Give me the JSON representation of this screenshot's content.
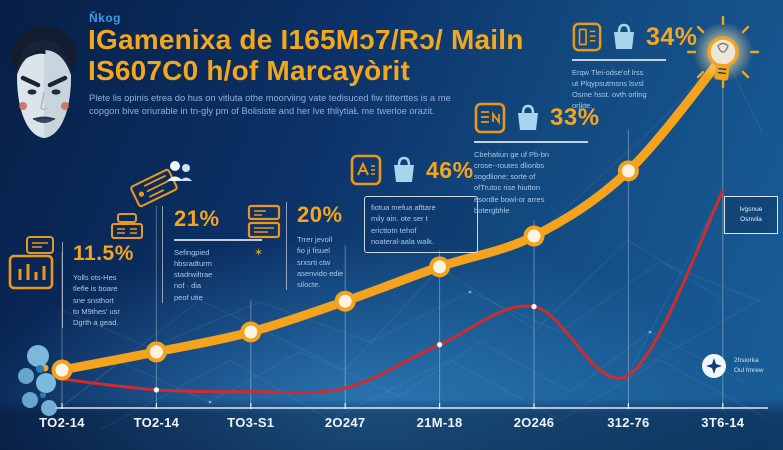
{
  "header": {
    "kicker": "Ňkog",
    "title_line1": "IGamenixa de I165Mɔ7/Rɔ/ Mailn",
    "title_line2": "IS607C0 h/of Marcayòrit",
    "subtitle": "Plete lis opinis etrea do hus on vitluta othe moorviing vate tedisuced fiw titterttes is a me\ncopgon bive oriurable in tn-gly pm of Bolisiste and her lve thliytiaŁ me twerloe orazit."
  },
  "stats": [
    {
      "value": "11.5%",
      "icons": [
        "bar-chart-icon"
      ],
      "desc": "Yolls ots-Hes\ntlefle is boare\nsne snsthort\nto  M9thes' usr\nDgrth a gead."
    },
    {
      "value": "21%",
      "icons": [
        "ticket-icon",
        "people-icon",
        "register-icon"
      ],
      "desc": "Sefingpied\nhbsradturm\nstadrwiltrae\nnof  ·  dia\npeof utie"
    },
    {
      "value": "20%",
      "icons": [
        "document-icon",
        "star-icon"
      ],
      "desc": "Trrer jevoll\nfio ji fisuel\nsrxsrti ctw\nasenvido edie\nsilocte."
    },
    {
      "value": "46%",
      "icons": [
        "app-icon",
        "shopping-bag-icon"
      ],
      "desc": "fiotua mefua afttare\nmily  ain.  ote ser t\nericttotn      tehof\nnoateral-aala walk."
    },
    {
      "value": "33%",
      "icons": [
        "app-icon",
        "shopping-bag-icon"
      ],
      "desc": "Cbehatiun ge uf Pb-bn\ncrose--routes dlionbs\nsogdlione;  sorte of\nofTrutoc   rise hiutton\nesordle bowl-or arres\nbotergbhle"
    },
    {
      "value": "34%",
      "icons": [
        "app-icon",
        "shopping-bag-icon"
      ],
      "desc": "Erqw Tlei-odse'of lrss\nut Plqypsutmsns  lsvsl\nOsme hsst.  ovth orling\norjkte."
    }
  ],
  "legend_box": {
    "line1": "Ivgsnue",
    "line2": "Osnvila"
  },
  "compass_note": "2hsiorka\nOul fmrew",
  "colors": {
    "accent_orange": "#f5a31d",
    "line_red": "#cf2d2d",
    "bag_blue": "#a8d4ee",
    "text_light": "#abc9e8",
    "background_deep": "#0a2a58"
  },
  "chart_data": {
    "type": "line",
    "categories": [
      "TO2-14",
      "TO2-14",
      "TO3-S1",
      "2O247",
      "21M-18",
      "2O246",
      "312-76",
      "3T6-14"
    ],
    "series": [
      {
        "name": "main-trend-orange",
        "color": "#f5a31d",
        "values": [
          10.5,
          15.5,
          21,
          29.5,
          39,
          47.5,
          65.5,
          97
        ]
      },
      {
        "name": "secondary-trend-red",
        "color": "#cf2d2d",
        "values": [
          8,
          5,
          4.5,
          5.5,
          17.5,
          28,
          9,
          60
        ]
      }
    ],
    "ylim": [
      0,
      100
    ],
    "xlabel": "",
    "ylabel": "",
    "grid": true,
    "legend_position": "none",
    "annotations": [
      "11.5%",
      "21%",
      "20%",
      "46%",
      "33%",
      "34%"
    ]
  }
}
